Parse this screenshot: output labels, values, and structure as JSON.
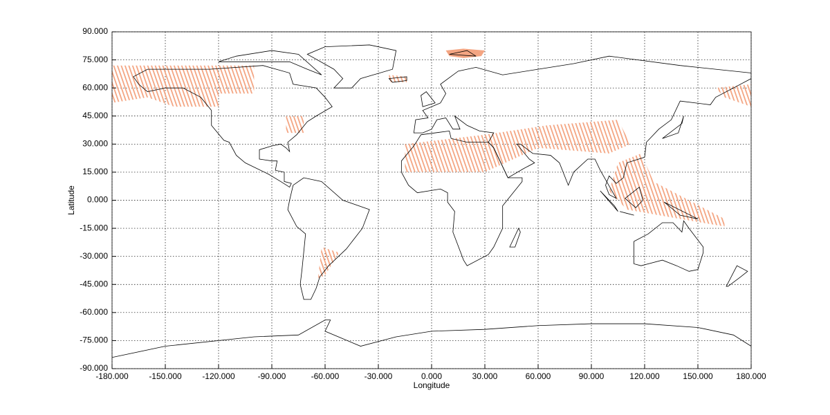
{
  "chart_data": {
    "type": "map",
    "x_label": "Longitude",
    "y_label": "Latitude",
    "xlim": [
      -180,
      180
    ],
    "ylim": [
      -90,
      90
    ],
    "xticks": [
      {
        "value": -180,
        "label": "-180.000"
      },
      {
        "value": -150,
        "label": "-150.000"
      },
      {
        "value": -120,
        "label": "-120.000"
      },
      {
        "value": -90,
        "label": "-90.000"
      },
      {
        "value": -60,
        "label": "-60.000"
      },
      {
        "value": -30,
        "label": "-30.000"
      },
      {
        "value": 0,
        "label": "0.000"
      },
      {
        "value": 30,
        "label": "30.000"
      },
      {
        "value": 60,
        "label": "60.000"
      },
      {
        "value": 90,
        "label": "90.000"
      },
      {
        "value": 120,
        "label": "120.000"
      },
      {
        "value": 150,
        "label": "150.000"
      },
      {
        "value": 180,
        "label": "180.000"
      }
    ],
    "yticks": [
      {
        "value": -90,
        "label": "-90.000"
      },
      {
        "value": -75,
        "label": "-75.000"
      },
      {
        "value": -60,
        "label": "-60.000"
      },
      {
        "value": -45,
        "label": "-45.000"
      },
      {
        "value": -30,
        "label": "-30.000"
      },
      {
        "value": -15,
        "label": "-15.000"
      },
      {
        "value": 0,
        "label": "0.000"
      },
      {
        "value": 15,
        "label": "15.000"
      },
      {
        "value": 30,
        "label": "30.000"
      },
      {
        "value": 45,
        "label": "45.000"
      },
      {
        "value": 60,
        "label": "60.000"
      },
      {
        "value": 75,
        "label": "75.000"
      },
      {
        "value": 90,
        "label": "90.000"
      }
    ],
    "grid": true,
    "color": "#f4a582"
  }
}
